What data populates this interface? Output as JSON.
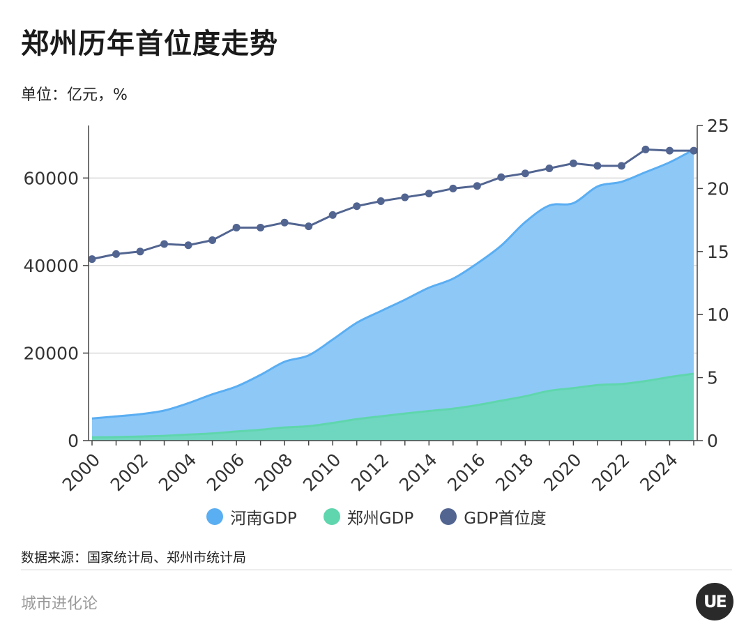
{
  "title": "郑州历年首位度走势",
  "unit": "单位：亿元，%",
  "source": "数据来源：国家统计局、郑州市统计局",
  "brand": "城市进化论",
  "logo_text": "UE",
  "colors": {
    "henan": "#5aaef2",
    "henan_fill": "#8ec8f7",
    "zhengzhou": "#5fd6ad",
    "zhengzhou_fill": "#6fd6bf",
    "primacy": "#526591",
    "axis": "#444444",
    "grid": "#d9d9d9"
  },
  "legend": [
    {
      "label": "河南GDP",
      "color": "#5aaef2"
    },
    {
      "label": "郑州GDP",
      "color": "#5fd6ad"
    },
    {
      "label": "GDP首位度",
      "color": "#526591"
    }
  ],
  "chart_data": {
    "type": "area",
    "x": [
      2000,
      2001,
      2002,
      2003,
      2004,
      2005,
      2006,
      2007,
      2008,
      2009,
      2010,
      2011,
      2012,
      2013,
      2014,
      2015,
      2016,
      2017,
      2018,
      2019,
      2020,
      2021,
      2022,
      2023,
      2024,
      2025
    ],
    "x_tick_labels": [
      "2000",
      "2002",
      "2004",
      "2006",
      "2008",
      "2010",
      "2012",
      "2014",
      "2016",
      "2018",
      "2020",
      "2022",
      "2024"
    ],
    "series": [
      {
        "name": "河南GDP",
        "axis": "left",
        "kind": "area",
        "values": [
          5053,
          5533,
          6035,
          6868,
          8554,
          10587,
          12362,
          15012,
          18018,
          19480,
          23092,
          26931,
          29599,
          32191,
          34938,
          37002,
          40472,
          44553,
          49936,
          53717,
          54259,
          58071,
          59133,
          61345,
          63589,
          66500
        ]
      },
      {
        "name": "郑州GDP",
        "axis": "left",
        "kind": "area",
        "values": [
          729,
          812,
          927,
          1102,
          1377,
          1661,
          2083,
          2487,
          3004,
          3308,
          4041,
          4913,
          5550,
          6197,
          6777,
          7315,
          8114,
          9130,
          10143,
          11380,
          12003,
          12691,
          12935,
          13617,
          14533,
          15300
        ]
      },
      {
        "name": "GDP首位度",
        "axis": "right",
        "kind": "line",
        "values": [
          14.4,
          14.8,
          15.0,
          15.6,
          15.5,
          15.9,
          16.9,
          16.9,
          17.3,
          17.0,
          17.9,
          18.6,
          19.0,
          19.3,
          19.6,
          20.0,
          20.2,
          20.9,
          21.2,
          21.6,
          22.0,
          21.8,
          21.8,
          23.1,
          23.0,
          23.0
        ]
      }
    ],
    "y_left": {
      "ylim": [
        0,
        72000
      ],
      "ticks": [
        0,
        20000,
        40000,
        60000
      ]
    },
    "y_right": {
      "ylim": [
        0,
        25
      ],
      "ticks": [
        0,
        5,
        10,
        15,
        20,
        25
      ]
    },
    "grid": true,
    "legend_position": "bottom"
  }
}
